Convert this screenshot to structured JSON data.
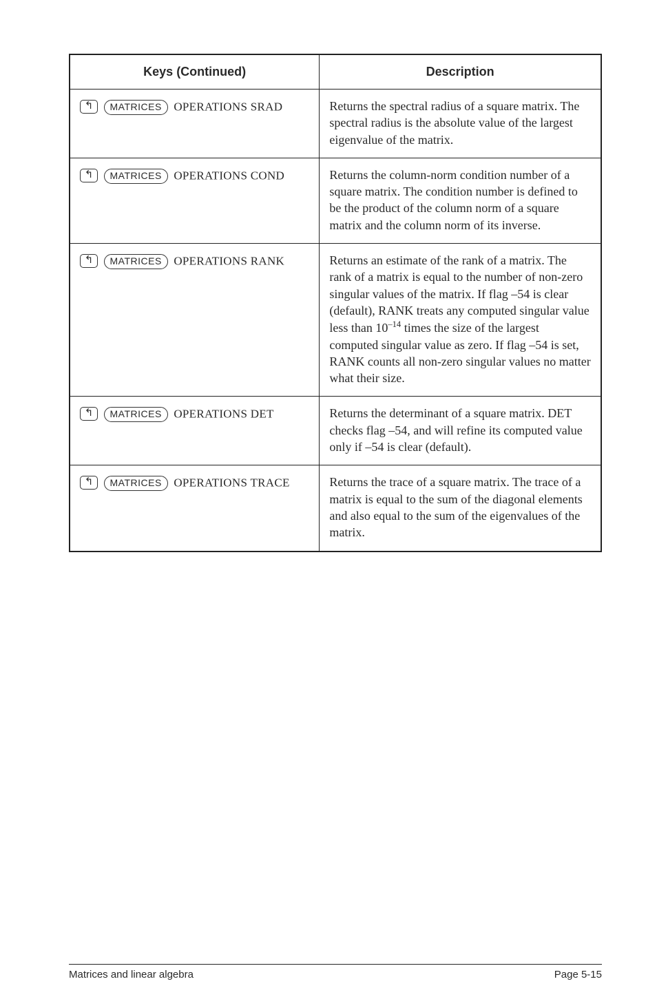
{
  "headers": {
    "keys": "Keys (Continued)",
    "desc": "Description"
  },
  "shift_glyph": "↰",
  "matrices_label": "MATRICES",
  "rows": [
    {
      "menu": "OPERATIONS SRAD",
      "desc": "Returns the spectral radius of a square matrix. The spectral radius is the absolute value of the largest eigenvalue of the matrix."
    },
    {
      "menu": "OPERATIONS COND",
      "desc": "Returns the column-norm condition number of a square matrix. The condition number is defined to be the product of the column norm of a square matrix and the column norm of its inverse."
    },
    {
      "menu": "OPERATIONS RANK",
      "desc_html": "Returns an estimate of the rank of a matrix. The rank of a matrix is equal to the number of non-zero singular values of the matrix. If flag –54 is clear (default), RANK treats any computed singular value less than 10<sup>–14</sup> times the size of the largest computed singular value as zero. If flag –54 is set, RANK counts all non-zero singular values no matter what their size."
    },
    {
      "menu": "OPERATIONS DET",
      "desc": "Returns the determinant of a square matrix. DET checks flag –54, and will refine its computed value only if –54 is clear (default)."
    },
    {
      "menu": "OPERATIONS TRACE",
      "desc": "Returns the trace of a square matrix. The trace of a matrix is equal to the sum of the diagonal elements and also equal to the sum of the eigenvalues of the matrix."
    }
  ],
  "footer": {
    "left": "Matrices and linear algebra",
    "right": "Page 5-15"
  }
}
